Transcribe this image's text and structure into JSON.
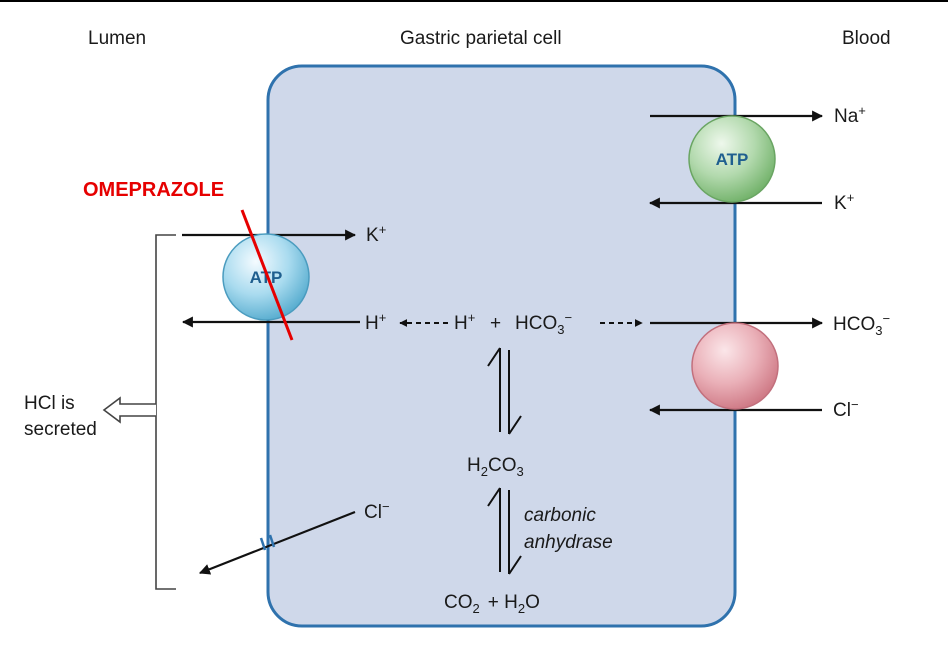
{
  "headers": {
    "lumen": "Lumen",
    "cell": "Gastric parietal cell",
    "blood": "Blood"
  },
  "drug_label": "OMEPRAZOLE",
  "proton_pump": {
    "atp_label": "ATP",
    "k_in": "K",
    "h_out": "H"
  },
  "na_k_pump": {
    "atp_label": "ATP",
    "na_out": "Na",
    "k_in": "K"
  },
  "exchanger": {
    "hco3_out": "HCO",
    "cl_in": "Cl"
  },
  "cytoplasm": {
    "h_plus": "H",
    "plus_sign": "+",
    "hco3": "HCO",
    "h2co3_h": "H",
    "h2co3_co": "CO",
    "co2_co": "CO",
    "h2o_plus": "+ H",
    "h2o_o": "O",
    "enzyme_line1": "carbonic",
    "enzyme_line2": "anhydrase"
  },
  "chloride_channel": {
    "cl_out": "Cl"
  },
  "secretion": {
    "line1": "HCl is",
    "line2": "secreted"
  },
  "superscripts": {
    "plus": "+",
    "minus": "−"
  },
  "subscripts": {
    "two": "2",
    "three": "3"
  },
  "colors": {
    "cell_fill": "#cfd8ea",
    "cell_stroke": "#2f72ad",
    "proton_pump_fill": "#9dd3e8",
    "na_k_pump_fill": "#a9d3a4",
    "exchanger_fill": "#e8a6ae",
    "drug": "#e60000"
  }
}
